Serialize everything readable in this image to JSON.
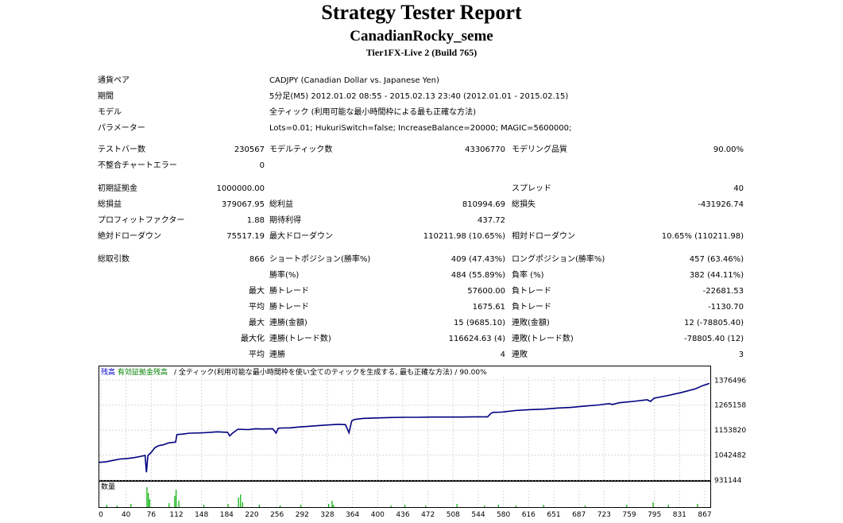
{
  "header": {
    "title": "Strategy Tester Report",
    "expert": "CanadianRocky_seme",
    "server": "Tier1FX-Live 2 (Build 765)"
  },
  "settings": [
    {
      "label": "通貨ペア",
      "value": "CADJPY (Canadian Dollar vs. Japanese Yen)"
    },
    {
      "label": "期間",
      "value": "5分足(M5) 2012.01.02 08:55 - 2015.02.13 23:40 (2012.01.01 - 2015.02.15)"
    },
    {
      "label": "モデル",
      "value": "全ティック (利用可能な最小時間枠による最も正確な方法)"
    },
    {
      "label": "パラメーター",
      "value": "Lots=0.01; HukuriSwitch=false; IncreaseBalance=20000; MAGIC=5600000;"
    }
  ],
  "stats": {
    "bars_label": "テストバー数",
    "bars": "230567",
    "ticks_label": "モデルティック数",
    "ticks": "43306770",
    "quality_label": "モデリング品質",
    "quality": "90.00%",
    "errors_label": "不整合チャートエラー",
    "errors": "0",
    "deposit_label": "初期証拠金",
    "deposit": "1000000.00",
    "spread_label": "スプレッド",
    "spread": "40",
    "net_label": "総損益",
    "net": "379067.95",
    "gross_profit_label": "総利益",
    "gross_profit": "810994.69",
    "gross_loss_label": "総損失",
    "gross_loss": "-431926.74",
    "pf_label": "プロフィットファクター",
    "pf": "1.88",
    "expected_label": "期待利得",
    "expected": "437.72",
    "abs_dd_label": "絶対ドローダウン",
    "abs_dd": "75517.19",
    "max_dd_label": "最大ドローダウン",
    "max_dd": "110211.98 (10.65%)",
    "rel_dd_label": "相対ドローダウン",
    "rel_dd": "10.65% (110211.98)",
    "trades_label": "総取引数",
    "trades": "866",
    "short_label": "ショートポジション(勝率%)",
    "short": "409 (47.43%)",
    "long_label": "ロングポジション(勝率%)",
    "long": "457 (63.46%)",
    "win_label": "勝率(%)",
    "win": "484 (55.89%)",
    "loss_label": "負率 (%)",
    "loss": "382 (44.11%)",
    "max_label": "最大",
    "avg_label": "平均",
    "maxed_label": "最大化",
    "win_trade_label": "勝トレード",
    "loss_trade_label": "負トレード",
    "max_win": "57600.00",
    "max_loss": "-22681.53",
    "avg_win": "1675.61",
    "avg_loss": "-1130.70",
    "cons_win_money_label": "連勝(金額)",
    "cons_win_money": "15 (9685.10)",
    "cons_loss_money_label": "連敗(金額)",
    "cons_loss_money": "12 (-78805.40)",
    "cons_win_trades_label": "連勝(トレード数)",
    "cons_win_trades": "116624.63 (4)",
    "cons_loss_trades_label": "連敗(トレード数)",
    "cons_loss_trades": "-78805.40 (12)",
    "avg_cons_win_label": "連勝",
    "avg_cons_win": "4",
    "avg_cons_loss_label": "連敗",
    "avg_cons_loss": "3"
  },
  "chart_data": {
    "type": "line",
    "legend_balance": "残高",
    "legend_equity": "有効証拠金残高",
    "legend_text": " / 全ティック(利用可能な最小時間枠を使い全てのティックを生成する, 最も正確な方法) / 90.00%",
    "ylim": [
      931144,
      1420000
    ],
    "y_ticks": [
      "1376496",
      "1265158",
      "1153820",
      "1042482",
      "931144"
    ],
    "x_ticks": [
      "0",
      "40",
      "76",
      "112",
      "148",
      "184",
      "220",
      "256",
      "292",
      "328",
      "364",
      "400",
      "436",
      "472",
      "508",
      "544",
      "580",
      "616",
      "651",
      "687",
      "723",
      "759",
      "795",
      "831",
      "867"
    ],
    "series": [
      {
        "x": [
          0,
          10,
          20,
          30,
          40,
          50,
          60,
          66,
          68,
          70,
          75,
          80,
          85,
          88,
          92,
          100,
          110,
          112,
          120,
          130,
          150,
          170,
          185,
          188,
          192,
          200,
          215,
          225,
          235,
          250,
          255,
          258,
          262,
          275,
          290,
          320,
          345,
          355,
          360,
          364,
          368,
          372,
          380,
          400,
          420,
          440,
          460,
          480,
          500,
          520,
          540,
          560,
          565,
          568,
          580,
          600,
          620,
          640,
          660,
          680,
          700,
          720,
          735,
          740,
          750,
          770,
          790,
          795,
          800,
          820,
          840,
          860,
          870,
          880
        ],
        "values": [
          1010000,
          1013000,
          1019000,
          1025000,
          1027000,
          1031000,
          1037000,
          1041000,
          966000,
          1040000,
          1055000,
          1075000,
          1084000,
          1086000,
          1088000,
          1097000,
          1100000,
          1134000,
          1136000,
          1140000,
          1142000,
          1146000,
          1144000,
          1128000,
          1140000,
          1158000,
          1156000,
          1160000,
          1159000,
          1160000,
          1141000,
          1162000,
          1163000,
          1164000,
          1168000,
          1175000,
          1180000,
          1178000,
          1142000,
          1195000,
          1201000,
          1203000,
          1206000,
          1208000,
          1210000,
          1211000,
          1211000,
          1212000,
          1212000,
          1212000,
          1213000,
          1213000,
          1229000,
          1233000,
          1234000,
          1241000,
          1245000,
          1247000,
          1252000,
          1255000,
          1261000,
          1266000,
          1272000,
          1268000,
          1276000,
          1282000,
          1289000,
          1282000,
          1296000,
          1308000,
          1322000,
          1338000,
          1352000,
          1362000
        ]
      }
    ],
    "volume_label": "数量"
  }
}
